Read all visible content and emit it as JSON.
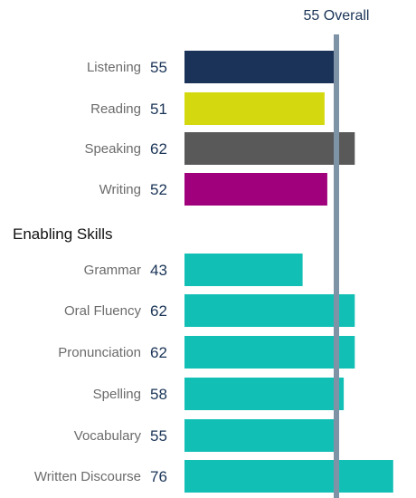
{
  "chart_data": {
    "type": "bar",
    "orientation": "horizontal",
    "reference_line": {
      "value": 55,
      "label_value": "55",
      "label_text": "Overall"
    },
    "sections": [
      {
        "title": "",
        "items": [
          {
            "label": "Listening",
            "value": 55,
            "color": "#1b3358"
          },
          {
            "label": "Reading",
            "value": 51,
            "color": "#d4d90f"
          },
          {
            "label": "Speaking",
            "value": 62,
            "color": "#595959"
          },
          {
            "label": "Writing",
            "value": 52,
            "color": "#a0007b"
          }
        ]
      },
      {
        "title": "Enabling Skills",
        "items": [
          {
            "label": "Grammar",
            "value": 43,
            "color": "#12bfb5"
          },
          {
            "label": "Oral Fluency",
            "value": 62,
            "color": "#12bfb5"
          },
          {
            "label": "Pronunciation",
            "value": 62,
            "color": "#12bfb5"
          },
          {
            "label": "Spelling",
            "value": 58,
            "color": "#12bfb5"
          },
          {
            "label": "Vocabulary",
            "value": 55,
            "color": "#12bfb5"
          },
          {
            "label": "Written Discourse",
            "value": 76,
            "color": "#12bfb5"
          }
        ]
      }
    ],
    "colors": {
      "reference_line": "#7f93a6",
      "value_text": "#1a3457",
      "label_text": "#6b6b6b"
    }
  }
}
